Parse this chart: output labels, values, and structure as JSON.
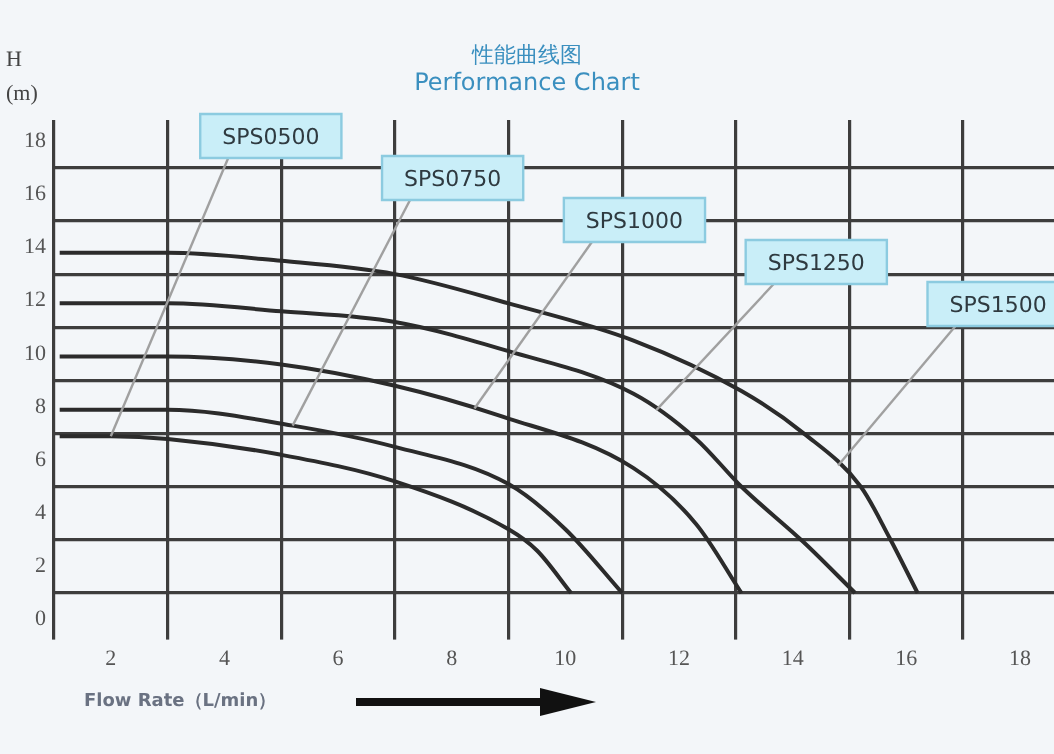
{
  "chart_data": {
    "type": "line",
    "title": "性能曲线图",
    "subtitle": "Performance Chart",
    "xlabel": "Flow Rate（L/min）",
    "ylabel": "H\n(m)",
    "xlim": [
      1,
      18.6
    ],
    "ylim": [
      0,
      18.8
    ],
    "xticks": [
      {
        "value": 1,
        "label": null
      },
      2,
      {
        "value": 3,
        "label": null
      },
      4,
      {
        "value": 5,
        "label": null
      },
      6,
      {
        "value": 7,
        "label": null
      },
      8,
      {
        "value": 9,
        "label": null
      },
      10,
      {
        "value": 11,
        "label": null
      },
      12,
      {
        "value": 13,
        "label": null
      },
      14,
      {
        "value": 15,
        "label": null
      },
      16,
      {
        "value": 17,
        "label": null
      },
      18
    ],
    "yticks": [
      0,
      {
        "value": 1,
        "label": null
      },
      2,
      {
        "value": 3,
        "label": null
      },
      4,
      {
        "value": 5,
        "label": null
      },
      6,
      {
        "value": 7,
        "label": null
      },
      8,
      {
        "value": 9,
        "label": null
      },
      10,
      {
        "value": 11,
        "label": null
      },
      12,
      {
        "value": 13,
        "label": null
      },
      14,
      {
        "value": 15,
        "label": null
      },
      16,
      {
        "value": 17,
        "label": null
      },
      18
    ],
    "grid": true,
    "legend": false,
    "marker": "none",
    "line_style": "solid",
    "series": [
      {
        "name": "SPS0500",
        "color": "#2b2b2b",
        "x": [
          1.1,
          2,
          3,
          5,
          7,
          9,
          9.5,
          10.1
        ],
        "values": [
          6.9,
          6.9,
          6.8,
          6.2,
          5.2,
          3.4,
          2.6,
          1
        ]
      },
      {
        "name": "SPS0750",
        "color": "#2b2b2b",
        "x": [
          1.1,
          3,
          5.2,
          7,
          9,
          10,
          11
        ],
        "values": [
          7.9,
          7.9,
          7.3,
          6.5,
          5.1,
          3.4,
          1
        ]
      },
      {
        "name": "SPS1000",
        "color": "#2b2b2b",
        "x": [
          1.1,
          3,
          5,
          7,
          8.8,
          11.2,
          12.3,
          13.1
        ],
        "values": [
          9.9,
          9.9,
          9.6,
          8.8,
          7.7,
          5.7,
          3.6,
          1
        ]
      },
      {
        "name": "SPS1250",
        "color": "#2b2b2b",
        "x": [
          1.1,
          3,
          5,
          7,
          9,
          11.2,
          12.3,
          13.1,
          14.2,
          15.1
        ],
        "values": [
          11.9,
          11.9,
          11.6,
          11.2,
          10.1,
          8.5,
          6.8,
          5,
          2.9,
          1
        ]
      },
      {
        "name": "SPS1500",
        "color": "#2b2b2b",
        "x": [
          1.1,
          3,
          5,
          7,
          9,
          11.2,
          13.1,
          14.2,
          15.2,
          15.7,
          16.2
        ],
        "values": [
          13.8,
          13.8,
          13.5,
          13,
          11.9,
          10.5,
          8.6,
          7,
          5,
          3.1,
          1
        ]
      }
    ]
  }
}
